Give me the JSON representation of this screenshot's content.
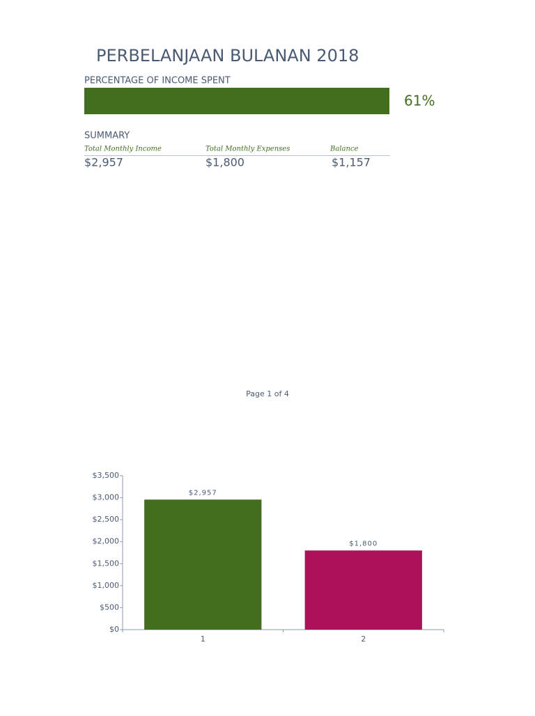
{
  "title": "PERBELANJAAN BULANAN 2018",
  "progress": {
    "label": "PERCENTAGE OF INCOME SPENT",
    "percent": "61%"
  },
  "summary": {
    "heading": "SUMMARY",
    "columns": [
      "Total Monthly Income",
      "Total Monthly Expenses",
      "Balance"
    ],
    "values": [
      "$2,957",
      "$1,800",
      "$1,157"
    ]
  },
  "footer": "Page 1 of 4",
  "chart_data": {
    "type": "bar",
    "categories": [
      "1",
      "2"
    ],
    "values": [
      2957,
      1800
    ],
    "value_labels": [
      "$2,957",
      "$1,800"
    ],
    "colors": [
      "#436e1d",
      "#ad1158"
    ],
    "ylim": [
      0,
      3500
    ],
    "yticks": [
      {
        "value": 0,
        "label": "$0"
      },
      {
        "value": 500,
        "label": "$500"
      },
      {
        "value": 1000,
        "label": "$1,000"
      },
      {
        "value": 1500,
        "label": "$1,500"
      },
      {
        "value": 2000,
        "label": "$2,000"
      },
      {
        "value": 2500,
        "label": "$2,500"
      },
      {
        "value": 3000,
        "label": "$3,000"
      },
      {
        "value": 3500,
        "label": "$3,500"
      }
    ]
  }
}
